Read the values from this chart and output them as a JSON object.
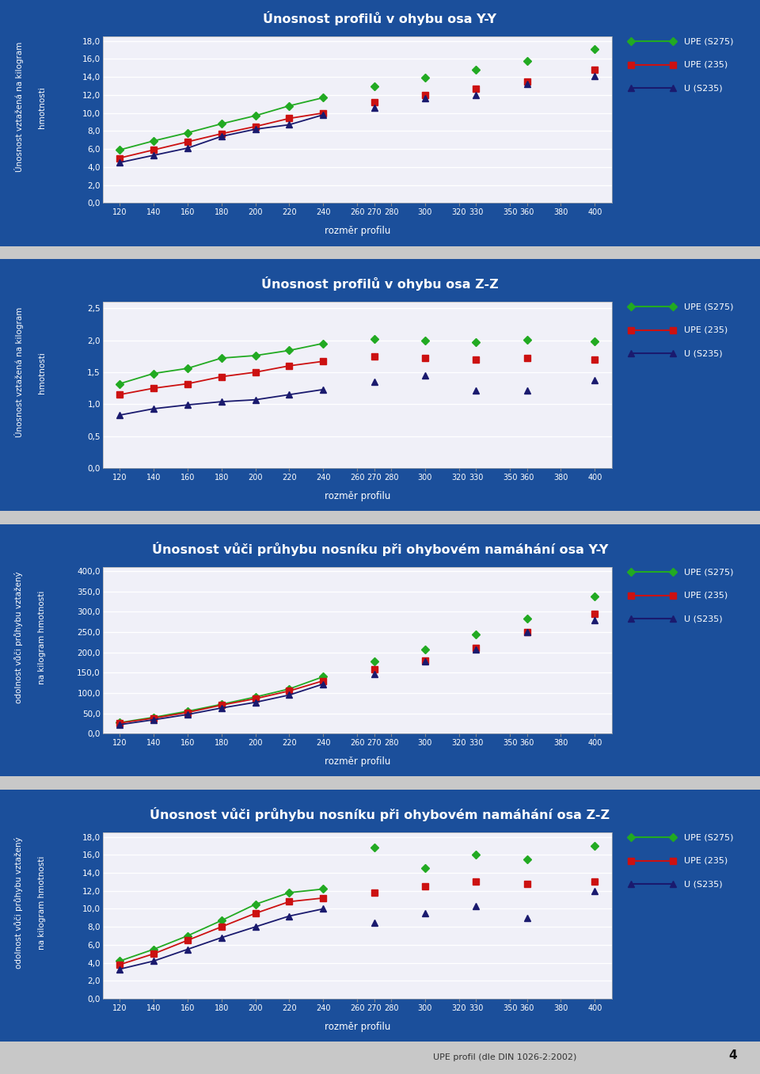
{
  "bg_color": "#1b4f9b",
  "chart_bg": "#f0f0f8",
  "page_bg": "#c8c8c8",
  "x_values": [
    120,
    140,
    160,
    180,
    200,
    220,
    240,
    260,
    270,
    280,
    300,
    320,
    330,
    350,
    360,
    380,
    400
  ],
  "xlabel": "rozměr profilu",
  "legend_labels": [
    "UPE (S275)",
    "UPE (235)",
    "U (S235)"
  ],
  "legend_colors": [
    "#22aa22",
    "#cc1111",
    "#1a1a6e"
  ],
  "charts": [
    {
      "title": "Únosnost profilů v ohybu osa Y-Y",
      "ylabel_line1": "Únosnost vztažená na kilogram",
      "ylabel_line2": "hmotnosti",
      "yticks": [
        0.0,
        2.0,
        4.0,
        6.0,
        8.0,
        10.0,
        12.0,
        14.0,
        16.0,
        18.0
      ],
      "ymax": 18.5,
      "s275": [
        5.9,
        6.9,
        7.8,
        8.8,
        9.7,
        10.8,
        11.7,
        null,
        13.0,
        null,
        13.9,
        null,
        14.8,
        null,
        15.8,
        null,
        17.1
      ],
      "s235": [
        5.0,
        5.9,
        6.8,
        7.7,
        8.5,
        9.4,
        10.0,
        null,
        11.2,
        null,
        12.0,
        null,
        12.7,
        null,
        13.5,
        null,
        14.8
      ],
      "u235": [
        4.5,
        5.3,
        6.1,
        7.4,
        8.2,
        8.7,
        9.8,
        null,
        10.6,
        null,
        11.6,
        null,
        12.0,
        null,
        13.2,
        null,
        14.1
      ]
    },
    {
      "title": "Únosnost profilů v ohybu osa Z-Z",
      "ylabel_line1": "Únosnost vztažená na kilogram",
      "ylabel_line2": "hmotnosti",
      "yticks": [
        0.0,
        0.5,
        1.0,
        1.5,
        2.0,
        2.5
      ],
      "ymax": 2.6,
      "s275": [
        1.32,
        1.48,
        1.56,
        1.72,
        1.76,
        1.84,
        1.95,
        null,
        2.02,
        null,
        2.0,
        null,
        1.97,
        null,
        2.01,
        null,
        1.98
      ],
      "s235": [
        1.15,
        1.25,
        1.32,
        1.43,
        1.5,
        1.6,
        1.67,
        null,
        1.75,
        null,
        1.72,
        null,
        1.7,
        null,
        1.72,
        null,
        1.7
      ],
      "u235": [
        0.83,
        0.93,
        0.99,
        1.04,
        1.07,
        1.15,
        1.23,
        null,
        1.35,
        null,
        1.45,
        null,
        1.22,
        null,
        1.22,
        null,
        1.38
      ]
    },
    {
      "title": "Únosnost vůči průhybu nosníku při ohybovém namáhání osa Y-Y",
      "ylabel_line1": "odolnost vůči průhybu vztažený",
      "ylabel_line2": "na kilogram hmotnosti",
      "yticks": [
        0.0,
        50.0,
        100.0,
        150.0,
        200.0,
        250.0,
        300.0,
        350.0,
        400.0
      ],
      "ymax": 410.0,
      "s275": [
        27.0,
        40.0,
        55.0,
        72.0,
        90.0,
        110.0,
        140.0,
        null,
        178.0,
        null,
        208.0,
        null,
        245.0,
        null,
        283.0,
        null,
        338.0
      ],
      "s235": [
        26.0,
        38.0,
        52.0,
        70.0,
        86.0,
        105.0,
        130.0,
        null,
        158.0,
        null,
        180.0,
        null,
        210.0,
        null,
        250.0,
        null,
        295.0
      ],
      "u235": [
        22.0,
        34.0,
        47.0,
        63.0,
        77.0,
        95.0,
        122.0,
        null,
        147.0,
        null,
        177.0,
        null,
        208.0,
        null,
        250.0,
        null,
        280.0
      ]
    },
    {
      "title": "Únosnost vůči průhybu nosníku při ohybovém namáhání osa Z-Z",
      "ylabel_line1": "odolnost vůči průhybu vztažený",
      "ylabel_line2": "na kilogram hmotnosti",
      "yticks": [
        0.0,
        2.0,
        4.0,
        6.0,
        8.0,
        10.0,
        12.0,
        14.0,
        16.0,
        18.0
      ],
      "ymax": 18.5,
      "s275": [
        4.2,
        5.5,
        7.0,
        8.7,
        10.5,
        11.8,
        12.2,
        null,
        16.8,
        null,
        14.5,
        null,
        16.0,
        null,
        15.5,
        null,
        17.0
      ],
      "s235": [
        3.8,
        5.0,
        6.5,
        8.0,
        9.5,
        10.8,
        11.2,
        null,
        11.8,
        null,
        12.5,
        null,
        13.0,
        null,
        12.8,
        null,
        13.0
      ],
      "u235": [
        3.3,
        4.2,
        5.5,
        6.8,
        8.0,
        9.2,
        10.0,
        null,
        8.5,
        null,
        9.5,
        null,
        10.3,
        null,
        9.0,
        null,
        12.0
      ]
    }
  ],
  "footer_text": "UPE profil (dle DIN 1026-2:2002)",
  "page_number": "4"
}
